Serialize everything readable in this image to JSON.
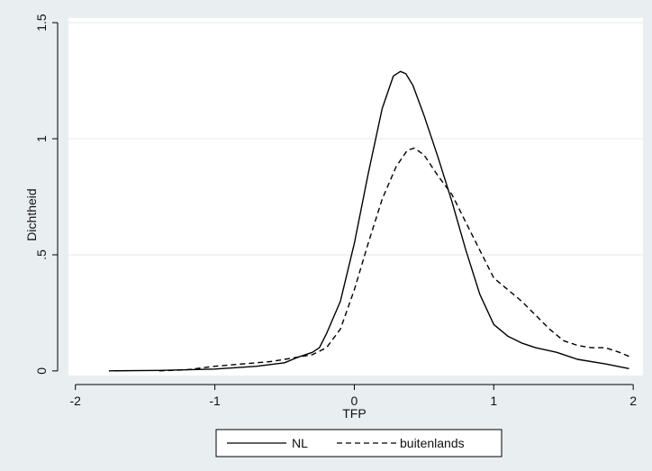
{
  "chart_data": {
    "type": "line",
    "xlabel": "TFP",
    "ylabel": "Dichtheid",
    "xlim": [
      -2.05,
      2.07
    ],
    "ylim": [
      -0.02,
      1.52
    ],
    "x_ticks": [
      -2,
      -1,
      0,
      1,
      2
    ],
    "x_tick_labels": [
      "-2",
      "-1",
      "0",
      "1",
      "2"
    ],
    "y_ticks": [
      0,
      0.5,
      1,
      1.5
    ],
    "y_tick_labels": [
      "0",
      ".5",
      "1",
      "1.5"
    ],
    "grid": "horizontal",
    "legend_position": "bottom",
    "series": [
      {
        "name": "NL",
        "style": "solid",
        "color": "#000000",
        "points": [
          [
            -1.76,
            0.0
          ],
          [
            -1.4,
            0.002
          ],
          [
            -1.0,
            0.008
          ],
          [
            -0.7,
            0.02
          ],
          [
            -0.5,
            0.035
          ],
          [
            -0.4,
            0.06
          ],
          [
            -0.3,
            0.08
          ],
          [
            -0.25,
            0.1
          ],
          [
            -0.2,
            0.16
          ],
          [
            -0.1,
            0.3
          ],
          [
            0.0,
            0.55
          ],
          [
            0.1,
            0.85
          ],
          [
            0.2,
            1.13
          ],
          [
            0.28,
            1.27
          ],
          [
            0.33,
            1.29
          ],
          [
            0.37,
            1.28
          ],
          [
            0.42,
            1.23
          ],
          [
            0.5,
            1.1
          ],
          [
            0.6,
            0.92
          ],
          [
            0.7,
            0.73
          ],
          [
            0.8,
            0.52
          ],
          [
            0.9,
            0.33
          ],
          [
            1.0,
            0.2
          ],
          [
            1.1,
            0.15
          ],
          [
            1.2,
            0.12
          ],
          [
            1.3,
            0.1
          ],
          [
            1.45,
            0.08
          ],
          [
            1.6,
            0.05
          ],
          [
            1.8,
            0.03
          ],
          [
            1.97,
            0.01
          ]
        ]
      },
      {
        "name": "buitenlands",
        "style": "dashed",
        "color": "#000000",
        "points": [
          [
            -1.4,
            0.0
          ],
          [
            -1.2,
            0.005
          ],
          [
            -1.0,
            0.02
          ],
          [
            -0.8,
            0.03
          ],
          [
            -0.6,
            0.04
          ],
          [
            -0.5,
            0.05
          ],
          [
            -0.4,
            0.06
          ],
          [
            -0.3,
            0.07
          ],
          [
            -0.2,
            0.1
          ],
          [
            -0.1,
            0.18
          ],
          [
            0.0,
            0.35
          ],
          [
            0.1,
            0.55
          ],
          [
            0.2,
            0.74
          ],
          [
            0.3,
            0.88
          ],
          [
            0.38,
            0.95
          ],
          [
            0.43,
            0.96
          ],
          [
            0.5,
            0.93
          ],
          [
            0.6,
            0.84
          ],
          [
            0.7,
            0.76
          ],
          [
            0.8,
            0.64
          ],
          [
            0.9,
            0.52
          ],
          [
            1.0,
            0.4
          ],
          [
            1.1,
            0.35
          ],
          [
            1.2,
            0.3
          ],
          [
            1.3,
            0.24
          ],
          [
            1.4,
            0.18
          ],
          [
            1.5,
            0.13
          ],
          [
            1.6,
            0.11
          ],
          [
            1.7,
            0.1
          ],
          [
            1.8,
            0.1
          ],
          [
            1.9,
            0.08
          ],
          [
            1.98,
            0.06
          ]
        ]
      }
    ]
  }
}
